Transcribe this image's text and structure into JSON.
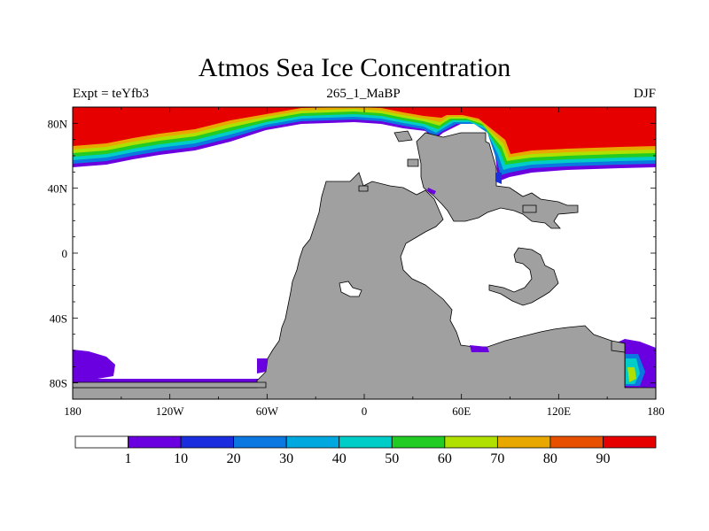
{
  "title": "Atmos Sea Ice Concentration",
  "subtitle_left": "Expt = teYfb3",
  "subtitle_center": "265_1_MaBP",
  "subtitle_right": "DJF",
  "axes": {
    "x_ticks": [
      "180",
      "120W",
      "60W",
      "0",
      "60E",
      "120E",
      "180"
    ],
    "y_ticks": [
      "80N",
      "40N",
      "0",
      "40S",
      "80S"
    ]
  },
  "colors": {
    "land": "#a0a0a0",
    "ocean": "#ffffff",
    "ice_high": "#e60000"
  },
  "colorbar": {
    "labels": [
      "1",
      "10",
      "20",
      "30",
      "40",
      "50",
      "60",
      "70",
      "80",
      "90"
    ],
    "colors": [
      "#ffffff",
      "#6a00e0",
      "#1a2ee0",
      "#0a78e0",
      "#00a8e0",
      "#00cdc8",
      "#22cc22",
      "#b0e000",
      "#e8a800",
      "#e85000",
      "#e60000"
    ]
  }
}
